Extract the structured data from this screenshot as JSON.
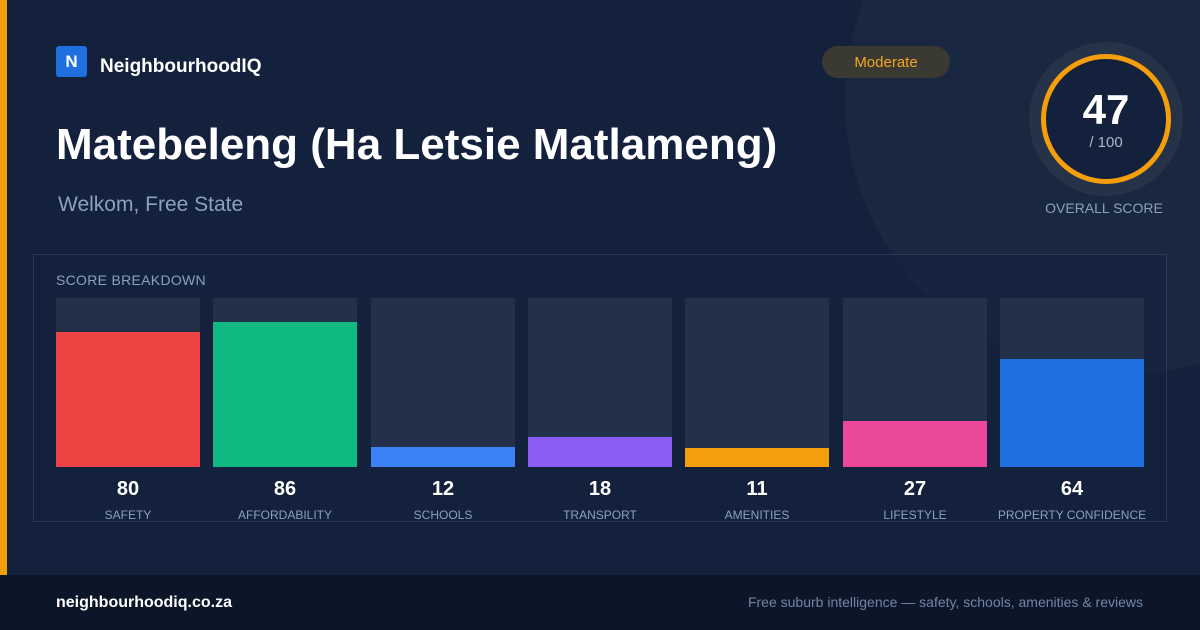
{
  "brand": {
    "logo_letter": "N",
    "name": "NeighbourhoodIQ"
  },
  "badge": {
    "label": "Moderate",
    "color": "#f5a524"
  },
  "header": {
    "title": "Matebeleng (Ha Letsie Matlameng)",
    "subtitle": "Welkom, Free State"
  },
  "overall": {
    "score": "47",
    "max": "/ 100",
    "label": "OVERALL SCORE",
    "ring_color": "#f59e0b"
  },
  "breakdown_title": "SCORE BREAKDOWN",
  "chart_data": {
    "type": "bar",
    "title": "SCORE BREAKDOWN",
    "ylim": [
      0,
      100
    ],
    "grid": false,
    "categories": [
      "SAFETY",
      "AFFORDABILITY",
      "SCHOOLS",
      "TRANSPORT",
      "AMENITIES",
      "LIFESTYLE",
      "PROPERTY CONFIDENCE"
    ],
    "values": [
      80,
      86,
      12,
      18,
      11,
      27,
      64
    ],
    "colors": [
      "#ef4444",
      "#10b981",
      "#3b82f6",
      "#8b5cf6",
      "#f59e0b",
      "#ec4899",
      "#1f6fe0"
    ]
  },
  "footer": {
    "domain": "neighbourhoodiq.co.za",
    "tagline": "Free suburb intelligence — safety, schools, amenities & reviews"
  }
}
